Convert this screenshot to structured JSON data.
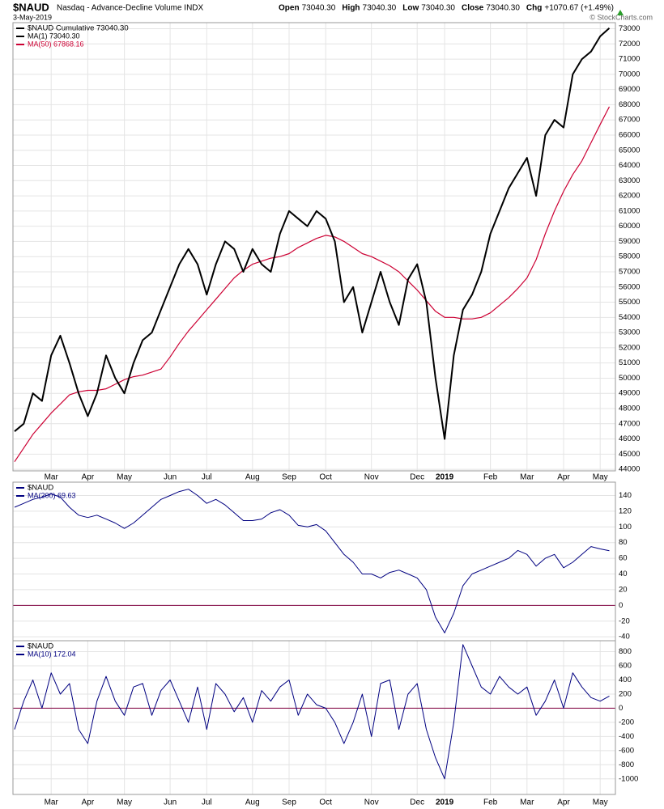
{
  "header": {
    "symbol": "$NAUD",
    "name": "Nasdaq - Advance-Decline Volume INDX",
    "date": "3-May-2019",
    "quote": [
      {
        "label": "Open",
        "value": "73040.30"
      },
      {
        "label": "High",
        "value": "73040.30"
      },
      {
        "label": "Low",
        "value": "73040.30"
      },
      {
        "label": "Close",
        "value": "73040.30"
      },
      {
        "label": "Chg",
        "value": "+1070.67 (+1.49%)"
      }
    ],
    "credit": "© StockCharts.com"
  },
  "chart_data": [
    {
      "type": "line",
      "legend_header": "$NAUD Cumulative 73040.30",
      "categories": [
        null,
        null,
        null,
        null,
        "Mar",
        null,
        null,
        null,
        "Apr",
        null,
        null,
        null,
        "May",
        null,
        null,
        null,
        null,
        "Jun",
        null,
        null,
        null,
        "Jul",
        null,
        null,
        null,
        null,
        "Aug",
        null,
        null,
        null,
        "Sep",
        null,
        null,
        null,
        "Oct",
        null,
        null,
        null,
        null,
        "Nov",
        null,
        null,
        null,
        null,
        "Dec",
        null,
        null,
        "2019",
        null,
        null,
        null,
        null,
        "Feb",
        null,
        null,
        null,
        "Mar",
        null,
        null,
        null,
        "Apr",
        null,
        null,
        null,
        "May",
        null
      ],
      "series": [
        {
          "name": "MA(1) 73040.30",
          "color": "#000000",
          "width": 2,
          "values": [
            46500,
            47000,
            49000,
            48500,
            51500,
            52800,
            51000,
            49000,
            47500,
            49000,
            51500,
            50000,
            49000,
            51000,
            52500,
            53000,
            54500,
            56000,
            57500,
            58500,
            57500,
            55500,
            57500,
            59000,
            58500,
            57000,
            58500,
            57500,
            57000,
            59500,
            61000,
            60500,
            60000,
            61000,
            60500,
            59000,
            55000,
            56000,
            53000,
            55000,
            57000,
            55000,
            53500,
            56500,
            57500,
            55000,
            50000,
            46000,
            51500,
            54500,
            55500,
            57000,
            59500,
            61000,
            62500,
            63500,
            64500,
            62000,
            66000,
            67000,
            66500,
            70000,
            71000,
            71500,
            72500,
            73040.3
          ]
        },
        {
          "name": "MA(50) 67868.16",
          "color": "#cc0033",
          "width": 1.2,
          "values": [
            44500,
            45400,
            46300,
            47000,
            47700,
            48300,
            48900,
            49100,
            49200,
            49200,
            49300,
            49600,
            49900,
            50100,
            50200,
            50400,
            50600,
            51400,
            52300,
            53100,
            53800,
            54500,
            55200,
            55900,
            56600,
            57100,
            57500,
            57700,
            57900,
            58000,
            58200,
            58600,
            58900,
            59200,
            59400,
            59300,
            59000,
            58600,
            58200,
            58000,
            57700,
            57400,
            57000,
            56400,
            55800,
            55100,
            54400,
            54000,
            54000,
            53900,
            53900,
            54000,
            54300,
            54800,
            55300,
            55900,
            56600,
            57800,
            59500,
            61000,
            62300,
            63400,
            64300,
            65500,
            66700,
            67868.16
          ]
        }
      ],
      "ylim": [
        43900,
        73400
      ],
      "yticks": [
        44000,
        45000,
        46000,
        47000,
        48000,
        49000,
        50000,
        51000,
        52000,
        53000,
        54000,
        55000,
        56000,
        57000,
        58000,
        59000,
        60000,
        61000,
        62000,
        63000,
        64000,
        65000,
        66000,
        67000,
        68000,
        69000,
        70000,
        71000,
        72000,
        73000
      ],
      "grid": true
    },
    {
      "type": "line",
      "legend_header": "$NAUD",
      "series": [
        {
          "name": "MA(200) 69.63",
          "color": "#000080",
          "width": 1,
          "values": [
            125,
            130,
            135,
            138,
            142,
            138,
            125,
            115,
            112,
            115,
            110,
            105,
            98,
            105,
            115,
            125,
            135,
            140,
            145,
            148,
            140,
            130,
            135,
            128,
            118,
            108,
            108,
            110,
            118,
            122,
            115,
            102,
            100,
            103,
            95,
            80,
            65,
            55,
            40,
            40,
            35,
            42,
            45,
            40,
            35,
            20,
            -15,
            -35,
            -10,
            25,
            40,
            45,
            50,
            55,
            60,
            70,
            65,
            50,
            60,
            65,
            48,
            55,
            65,
            75,
            72,
            69.63
          ]
        }
      ],
      "hline": 0,
      "hline_color": "#800040",
      "ylim": [
        -45,
        157
      ],
      "yticks": [
        -40,
        -20,
        0,
        20,
        40,
        60,
        80,
        100,
        120,
        140
      ],
      "grid": true
    },
    {
      "type": "line",
      "legend_header": "$NAUD",
      "categories": [
        null,
        null,
        null,
        null,
        "Mar",
        null,
        null,
        null,
        "Apr",
        null,
        null,
        null,
        "May",
        null,
        null,
        null,
        null,
        "Jun",
        null,
        null,
        null,
        "Jul",
        null,
        null,
        null,
        null,
        "Aug",
        null,
        null,
        null,
        "Sep",
        null,
        null,
        null,
        "Oct",
        null,
        null,
        null,
        null,
        "Nov",
        null,
        null,
        null,
        null,
        "Dec",
        null,
        null,
        "2019",
        null,
        null,
        null,
        null,
        "Feb",
        null,
        null,
        null,
        "Mar",
        null,
        null,
        null,
        "Apr",
        null,
        null,
        null,
        "May",
        null
      ],
      "series": [
        {
          "name": "MA(10) 172.04",
          "color": "#000080",
          "width": 1,
          "values": [
            -300,
            100,
            400,
            0,
            500,
            200,
            350,
            -300,
            -500,
            100,
            450,
            100,
            -100,
            300,
            350,
            -100,
            250,
            400,
            100,
            -200,
            300,
            -300,
            350,
            200,
            -50,
            150,
            -200,
            250,
            100,
            300,
            400,
            -100,
            200,
            50,
            0,
            -200,
            -500,
            -200,
            200,
            -400,
            350,
            400,
            -300,
            200,
            350,
            -300,
            -700,
            -1000,
            -200,
            900,
            600,
            300,
            200,
            450,
            300,
            200,
            300,
            -100,
            100,
            400,
            0,
            500,
            300,
            150,
            100,
            172.04
          ]
        }
      ],
      "hline": 0,
      "hline_color": "#800040",
      "ylim": [
        -1220,
        955
      ],
      "yticks": [
        -1000,
        -800,
        -600,
        -400,
        -200,
        0,
        200,
        400,
        600,
        800
      ],
      "grid": true
    }
  ]
}
